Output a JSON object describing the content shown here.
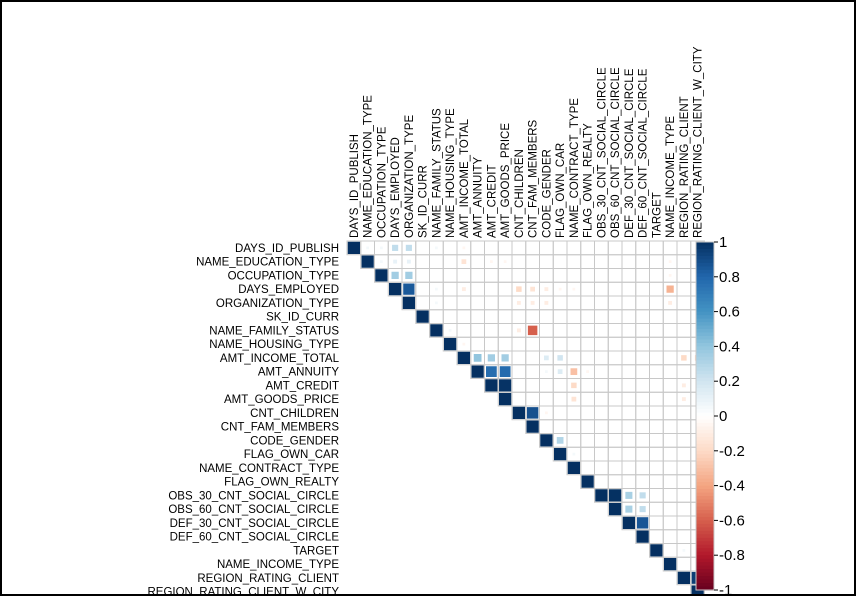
{
  "chart_data": {
    "type": "heatmap",
    "title": "",
    "variables": [
      "DAYS_ID_PUBLISH",
      "NAME_EDUCATION_TYPE",
      "OCCUPATION_TYPE",
      "DAYS_EMPLOYED",
      "ORGANIZATION_TYPE",
      "SK_ID_CURR",
      "NAME_FAMILY_STATUS",
      "NAME_HOUSING_TYPE",
      "AMT_INCOME_TOTAL",
      "AMT_ANNUITY",
      "AMT_CREDIT",
      "AMT_GOODS_PRICE",
      "CNT_CHILDREN",
      "CNT_FAM_MEMBERS",
      "CODE_GENDER",
      "FLAG_OWN_CAR",
      "NAME_CONTRACT_TYPE",
      "FLAG_OWN_REALTY",
      "OBS_30_CNT_SOCIAL_CIRCLE",
      "OBS_60_CNT_SOCIAL_CIRCLE",
      "DEF_30_CNT_SOCIAL_CIRCLE",
      "DEF_60_CNT_SOCIAL_CIRCLE",
      "TARGET",
      "NAME_INCOME_TYPE",
      "REGION_RATING_CLIENT",
      "REGION_RATING_CLIENT_W_CITY"
    ],
    "correlations": [
      [
        0,
        1,
        0.05
      ],
      [
        0,
        2,
        0.05
      ],
      [
        0,
        3,
        0.25
      ],
      [
        0,
        4,
        0.25
      ],
      [
        0,
        6,
        0.05
      ],
      [
        0,
        8,
        -0.05
      ],
      [
        1,
        2,
        0.05
      ],
      [
        1,
        3,
        0.1
      ],
      [
        1,
        4,
        0.1
      ],
      [
        1,
        8,
        -0.15
      ],
      [
        1,
        10,
        -0.05
      ],
      [
        1,
        11,
        -0.05
      ],
      [
        1,
        23,
        -0.05
      ],
      [
        1,
        25,
        0.05
      ],
      [
        2,
        3,
        0.35
      ],
      [
        2,
        4,
        0.35
      ],
      [
        2,
        23,
        -0.05
      ],
      [
        3,
        4,
        0.85
      ],
      [
        3,
        6,
        0.05
      ],
      [
        3,
        8,
        -0.1
      ],
      [
        3,
        12,
        -0.2
      ],
      [
        3,
        13,
        -0.15
      ],
      [
        3,
        14,
        -0.1
      ],
      [
        3,
        15,
        -0.05
      ],
      [
        3,
        16,
        -0.05
      ],
      [
        3,
        23,
        -0.35
      ],
      [
        4,
        6,
        0.05
      ],
      [
        4,
        12,
        -0.1
      ],
      [
        4,
        13,
        -0.1
      ],
      [
        4,
        14,
        -0.1
      ],
      [
        4,
        23,
        -0.1
      ],
      [
        6,
        7,
        0.05
      ],
      [
        6,
        13,
        -0.6
      ],
      [
        6,
        12,
        -0.1
      ],
      [
        7,
        8,
        -0.05
      ],
      [
        8,
        9,
        0.4
      ],
      [
        8,
        10,
        0.35
      ],
      [
        8,
        11,
        0.35
      ],
      [
        8,
        14,
        0.15
      ],
      [
        8,
        15,
        0.2
      ],
      [
        8,
        24,
        -0.2
      ],
      [
        8,
        25,
        -0.2
      ],
      [
        9,
        10,
        0.77
      ],
      [
        9,
        11,
        0.78
      ],
      [
        9,
        14,
        0.05
      ],
      [
        9,
        15,
        0.15
      ],
      [
        9,
        16,
        -0.3
      ],
      [
        9,
        17,
        -0.05
      ],
      [
        10,
        11,
        0.99
      ],
      [
        10,
        16,
        -0.2
      ],
      [
        10,
        24,
        -0.1
      ],
      [
        10,
        25,
        -0.1
      ],
      [
        11,
        16,
        -0.15
      ],
      [
        11,
        24,
        -0.1
      ],
      [
        11,
        25,
        -0.1
      ],
      [
        12,
        13,
        0.88
      ],
      [
        12,
        14,
        -0.05
      ],
      [
        14,
        15,
        0.3
      ],
      [
        15,
        16,
        0.05
      ],
      [
        18,
        19,
        0.998
      ],
      [
        18,
        20,
        0.33
      ],
      [
        18,
        21,
        0.25
      ],
      [
        19,
        20,
        0.33
      ],
      [
        19,
        21,
        0.25
      ],
      [
        20,
        21,
        0.86
      ],
      [
        22,
        24,
        0.05
      ],
      [
        22,
        25,
        0.05
      ],
      [
        24,
        25,
        0.95
      ]
    ],
    "color_range": [
      -1,
      1
    ],
    "colorbar_ticks": [
      "1",
      "0.8",
      "0.6",
      "0.4",
      "0.2",
      "0",
      "-0.2",
      "-0.4",
      "-0.6",
      "-0.8",
      "-1"
    ],
    "colorbar_values": [
      1,
      0.8,
      0.6,
      0.4,
      0.2,
      0,
      -0.2,
      -0.4,
      -0.6,
      -0.8,
      -1
    ],
    "colors": {
      "positive": "#053061",
      "zero": "#ffffff",
      "negative": "#67001f",
      "grid": "#c8c8c8"
    },
    "legend_position": "right",
    "shape": "upper-triangle squares"
  }
}
